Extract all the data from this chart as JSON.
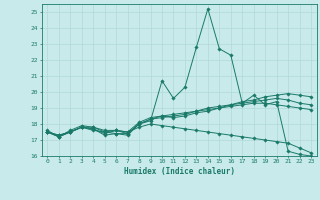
{
  "xlabel": "Humidex (Indice chaleur)",
  "ylabel": "",
  "bg_color": "#c8eaea",
  "line_color": "#1a7a6a",
  "grid_color": "#b0d8d8",
  "xlim": [
    -0.5,
    23.5
  ],
  "ylim": [
    16,
    25.5
  ],
  "yticks": [
    16,
    17,
    18,
    19,
    20,
    21,
    22,
    23,
    24,
    25
  ],
  "xticks": [
    0,
    1,
    2,
    3,
    4,
    5,
    6,
    7,
    8,
    9,
    10,
    11,
    12,
    13,
    14,
    15,
    16,
    17,
    18,
    19,
    20,
    21,
    22,
    23
  ],
  "series": [
    [
      17.5,
      17.2,
      17.6,
      17.9,
      17.8,
      17.5,
      17.4,
      17.3,
      18.0,
      18.2,
      20.7,
      19.6,
      20.3,
      22.8,
      25.2,
      22.7,
      22.3,
      19.3,
      19.8,
      19.2,
      19.4,
      16.3,
      16.1,
      16.0
    ],
    [
      17.5,
      17.2,
      17.5,
      17.8,
      17.7,
      17.4,
      17.6,
      17.5,
      18.1,
      18.4,
      18.5,
      18.4,
      18.5,
      18.7,
      18.8,
      19.0,
      19.2,
      19.4,
      19.5,
      19.7,
      19.8,
      19.9,
      19.8,
      19.7
    ],
    [
      17.5,
      17.3,
      17.5,
      17.8,
      17.6,
      17.5,
      17.6,
      17.4,
      18.0,
      18.3,
      18.5,
      18.6,
      18.7,
      18.8,
      19.0,
      19.1,
      19.2,
      19.3,
      19.4,
      19.5,
      19.6,
      19.5,
      19.3,
      19.2
    ],
    [
      17.5,
      17.3,
      17.5,
      17.8,
      17.7,
      17.3,
      17.4,
      17.4,
      18.0,
      18.3,
      18.4,
      18.5,
      18.6,
      18.8,
      18.9,
      19.0,
      19.1,
      19.2,
      19.3,
      19.3,
      19.2,
      19.1,
      19.0,
      18.9
    ],
    [
      17.6,
      17.2,
      17.5,
      17.8,
      17.8,
      17.6,
      17.6,
      17.5,
      17.8,
      18.0,
      17.9,
      17.8,
      17.7,
      17.6,
      17.5,
      17.4,
      17.3,
      17.2,
      17.1,
      17.0,
      16.9,
      16.8,
      16.5,
      16.2
    ]
  ]
}
